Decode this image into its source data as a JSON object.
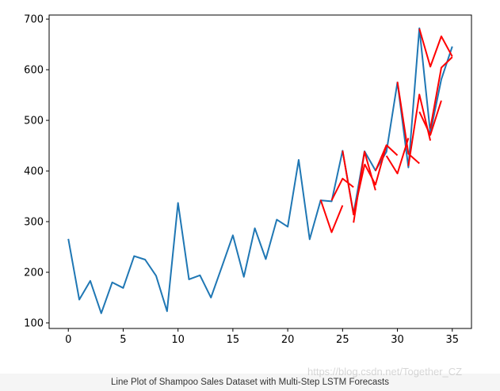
{
  "chart_data": {
    "type": "line",
    "title": "",
    "xlabel": "",
    "ylabel": "",
    "xlim": [
      -1.75,
      36.75
    ],
    "ylim": [
      89,
      708
    ],
    "xticks": [
      0,
      5,
      10,
      15,
      20,
      25,
      30,
      35
    ],
    "yticks": [
      100,
      200,
      300,
      400,
      500,
      600,
      700
    ],
    "grid": false,
    "series": [
      {
        "color": "#1f77b4",
        "x": [
          0,
          1,
          2,
          3,
          4,
          5,
          6,
          7,
          8,
          9,
          10,
          11,
          12,
          13,
          14,
          15,
          16,
          17,
          18,
          19,
          20,
          21,
          22,
          23,
          24,
          25,
          26,
          27,
          28,
          29,
          30,
          31,
          32,
          33,
          34,
          35
        ],
        "values": [
          266,
          146,
          183,
          119,
          180,
          169,
          232,
          225,
          193,
          123,
          337,
          186,
          194,
          150,
          211,
          273,
          191,
          287,
          226,
          304,
          290,
          422,
          265,
          342,
          340,
          440,
          316,
          439,
          401,
          438,
          575,
          407,
          682,
          475,
          581,
          646
        ]
      },
      {
        "color": "#ff0000",
        "x": [
          23,
          24,
          25
        ],
        "values": [
          343,
          279,
          332
        ]
      },
      {
        "color": "#ff0000",
        "x": [
          24,
          25,
          26
        ],
        "values": [
          342,
          385,
          368
        ]
      },
      {
        "color": "#ff0000",
        "x": [
          25,
          26,
          27
        ],
        "values": [
          440,
          314,
          412
        ]
      },
      {
        "color": "#ff0000",
        "x": [
          26,
          27,
          28
        ],
        "values": [
          298,
          438,
          362
        ]
      },
      {
        "color": "#ff0000",
        "x": [
          27,
          28,
          29
        ],
        "values": [
          414,
          373,
          451
        ]
      },
      {
        "color": "#ff0000",
        "x": [
          28,
          29,
          30
        ],
        "values": [
          400,
          451,
          431
        ]
      },
      {
        "color": "#ff0000",
        "x": [
          29,
          30,
          31
        ],
        "values": [
          430,
          395,
          465
        ]
      },
      {
        "color": "#ff0000",
        "x": [
          30,
          31,
          32
        ],
        "values": [
          576,
          434,
          415
        ]
      },
      {
        "color": "#ff0000",
        "x": [
          31,
          32,
          33
        ],
        "values": [
          410,
          551,
          460
        ]
      },
      {
        "color": "#ff0000",
        "x": [
          32,
          33,
          34
        ],
        "values": [
          517,
          471,
          539
        ]
      },
      {
        "color": "#ff0000",
        "x": [
          33,
          34,
          35
        ],
        "values": [
          484,
          604,
          625
        ]
      },
      {
        "color": "#ff0000",
        "x": [
          32,
          33,
          34,
          35
        ],
        "values": [
          681,
          606,
          666,
          626
        ]
      }
    ]
  },
  "caption": "Line Plot of Shampoo Sales Dataset with Multi-Step LSTM Forecasts",
  "watermark": "https://blog.csdn.net/Together_CZ"
}
